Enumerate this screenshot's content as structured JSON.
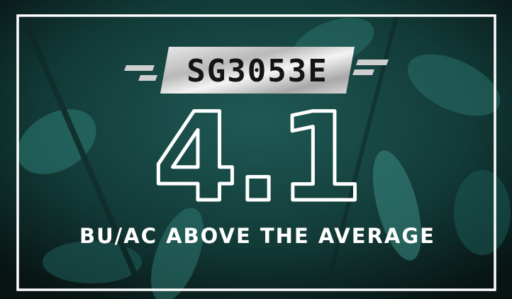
{
  "badge": "SG3053E",
  "figure": "4.1",
  "caption": "BU/AC ABOVE THE AVERAGE"
}
